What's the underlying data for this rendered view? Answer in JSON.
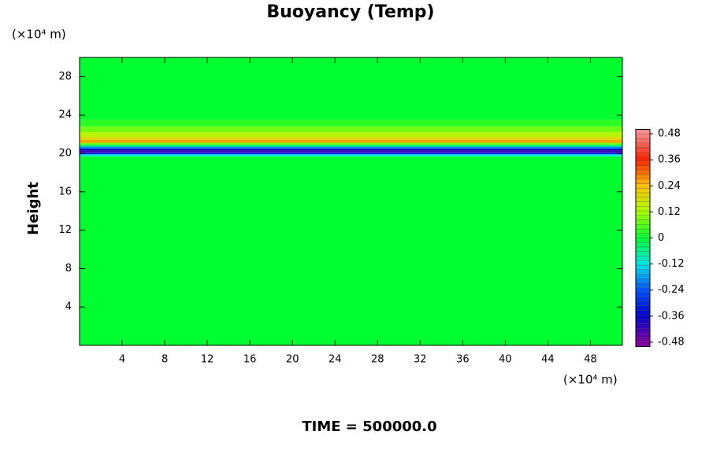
{
  "chart_data": {
    "type": "contour",
    "title": "Buoyancy (Temp)",
    "y_label": "Height",
    "y_unit": "(×10⁴ m)",
    "x_unit": "(×10⁴ m)",
    "annotation": "TIME = 500000.0",
    "xlim": [
      0,
      51
    ],
    "xticks": [
      4,
      8,
      12,
      16,
      20,
      24,
      28,
      32,
      36,
      40,
      44,
      48
    ],
    "ylim": [
      0,
      30
    ],
    "yticks": [
      4,
      8,
      12,
      16,
      20,
      24,
      28
    ],
    "y_bins": [
      0,
      19.7,
      19.9,
      20.1,
      20.3,
      20.5,
      20.7,
      20.9,
      21.1,
      21.4,
      21.7,
      22.2,
      22.8,
      23.5,
      30
    ],
    "values": [
      0,
      -0.12,
      -0.3,
      -0.42,
      -0.36,
      -0.2,
      -0.05,
      0.08,
      0.26,
      0.2,
      0.14,
      0.08,
      0.03,
      0
    ],
    "colorbar": {
      "lim": [
        -0.5,
        0.5
      ],
      "ticks": [
        -0.48,
        -0.36,
        -0.24,
        -0.12,
        0,
        0.12,
        0.24,
        0.36,
        0.48
      ],
      "colors": [
        "#8000a0",
        "#0000c8",
        "#0050ff",
        "#00e8e8",
        "#00ff30",
        "#a8ff00",
        "#ffc000",
        "#ff2000",
        "#ff8c8c"
      ]
    }
  }
}
